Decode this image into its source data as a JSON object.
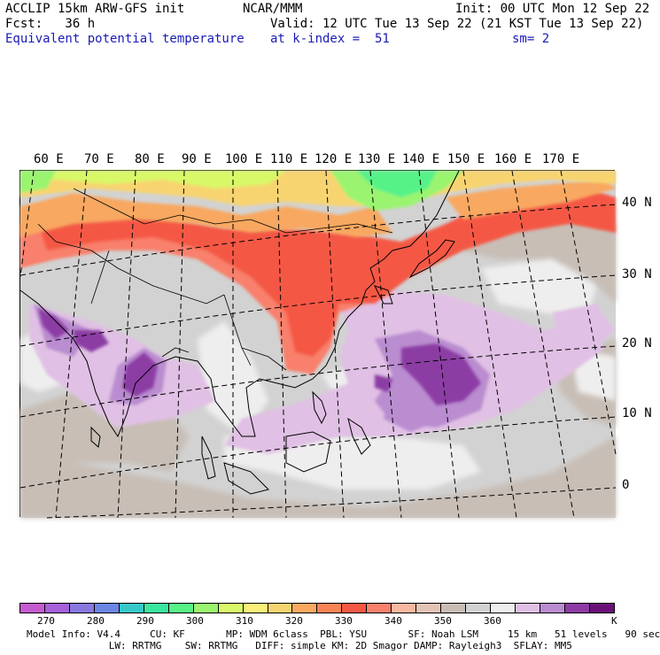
{
  "header": {
    "line1_left": "ACCLIP 15km ARW-GFS init",
    "line1_center": "NCAR/MMM",
    "line1_right": "Init: 00 UTC Mon 12 Sep 22",
    "line2_left": "Fcst:   36 h",
    "line2_right": "Valid: 12 UTC Tue 13 Sep 22 (21 KST Tue 13 Sep 22)",
    "line3_left": "Equivalent potential temperature",
    "line3_center": "at k-index =  51",
    "line3_right": "sm= 2"
  },
  "map": {
    "lon_labels": [
      "60 E",
      "70 E",
      "80 E",
      "90 E",
      "100 E",
      "110 E",
      "120 E",
      "130 E",
      "140 E",
      "150 E",
      "160 E",
      "170 E"
    ],
    "lat_labels": [
      "40 N",
      "30 N",
      "20 N",
      "10 N",
      "0"
    ]
  },
  "colorbar": {
    "colors": [
      "#c65ad0",
      "#a660d8",
      "#8878e0",
      "#6c86e4",
      "#38c8c8",
      "#3ae6a0",
      "#56f288",
      "#9af470",
      "#d8f868",
      "#f8f078",
      "#f8d470",
      "#f8a860",
      "#f88454",
      "#f45844",
      "#f8806c",
      "#f8b8a0",
      "#e4c4b4",
      "#c8beb6",
      "#d2d2d2",
      "#eeeeee",
      "#e0c0e4",
      "#ba8cd0",
      "#8c3ca4",
      "#6a1078"
    ],
    "labels": [
      "270",
      "280",
      "290",
      "300",
      "310",
      "320",
      "330",
      "340",
      "350",
      "360"
    ],
    "unit": "K"
  },
  "footer": {
    "line1": "Model Info: V4.4     CU: KF       MP: WDM 6class  PBL: YSU       SF: Noah LSM     15 km   51 levels   90 sec",
    "line2": "              LW: RRTMG    SW: RRTMG   DIFF: simple KM: 2D Smagor DAMP: Rayleigh3  SFLAY: MM5"
  }
}
